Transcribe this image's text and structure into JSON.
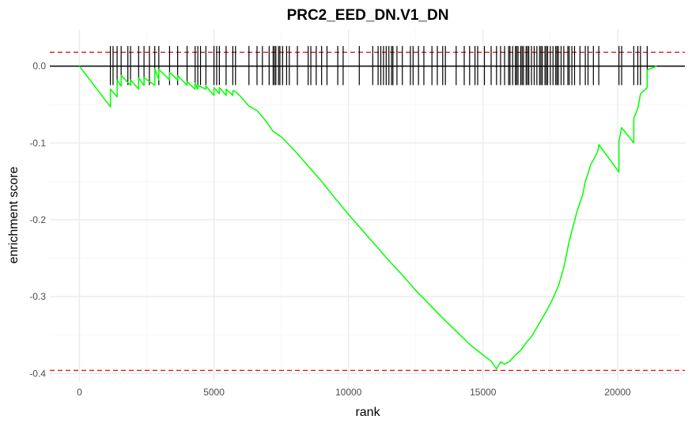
{
  "chart_data": {
    "type": "line",
    "title": "PRC2_EED_DN.V1_DN",
    "xlabel": "rank",
    "ylabel": "enrichment score",
    "xlim": [
      -1100,
      22500
    ],
    "ylim": [
      -0.41,
      0.048
    ],
    "x_ticks": [
      0,
      5000,
      10000,
      15000,
      20000
    ],
    "x_tick_labels": [
      "0",
      "5000",
      "10000",
      "15000",
      "20000"
    ],
    "y_ticks": [
      0.0,
      -0.1,
      -0.2,
      -0.3,
      -0.4
    ],
    "y_tick_labels": [
      "0.0",
      "-0.1",
      "-0.2",
      "-0.3",
      "-0.4"
    ],
    "grid": true,
    "colors": {
      "curve": "#00ff00",
      "threshold": "#e31a1c",
      "zero": "#000000",
      "gene_tick": "#000000",
      "grid_major": "#ebebeb",
      "grid_minor": "#f5f5f5"
    },
    "thresholds": [
      0.018,
      -0.396
    ],
    "series": [
      {
        "name": "running enrichment score",
        "x": [
          0,
          1150,
          1150,
          1400,
          1400,
          1550,
          1550,
          1900,
          1900,
          2200,
          2200,
          2400,
          2400,
          2800,
          2800,
          2950,
          2950,
          3350,
          3350,
          3650,
          3650,
          4000,
          4000,
          4300,
          4300,
          4400,
          4400,
          4700,
          4700,
          5000,
          5000,
          5200,
          5200,
          5450,
          5450,
          5700,
          5700,
          5800,
          6000,
          6300,
          6600,
          6900,
          7200,
          7500,
          8000,
          8500,
          9000,
          9500,
          10000,
          10500,
          11000,
          11500,
          12000,
          12500,
          13000,
          13500,
          14000,
          14500,
          15000,
          15300,
          15500,
          15650,
          15800,
          16000,
          16200,
          16400,
          16600,
          16800,
          17000,
          17200,
          17400,
          17600,
          17800,
          18000,
          18100,
          18200,
          18350,
          18500,
          18700,
          18800,
          18900,
          19000,
          19100,
          19250,
          19300,
          19300,
          20050,
          20050,
          20150,
          20150,
          20600,
          20600,
          20750,
          20750,
          20850,
          20850,
          21100,
          21100,
          21450
        ],
        "y": [
          0.0,
          -0.053,
          -0.03,
          -0.04,
          -0.018,
          -0.026,
          -0.012,
          -0.025,
          -0.018,
          -0.03,
          -0.015,
          -0.025,
          -0.015,
          -0.025,
          -0.003,
          -0.018,
          -0.004,
          -0.018,
          -0.008,
          -0.018,
          -0.012,
          -0.025,
          -0.02,
          -0.03,
          -0.022,
          -0.03,
          -0.025,
          -0.03,
          -0.026,
          -0.038,
          -0.028,
          -0.036,
          -0.028,
          -0.038,
          -0.03,
          -0.038,
          -0.032,
          -0.033,
          -0.04,
          -0.052,
          -0.058,
          -0.07,
          -0.085,
          -0.092,
          -0.11,
          -0.13,
          -0.15,
          -0.172,
          -0.193,
          -0.213,
          -0.233,
          -0.253,
          -0.272,
          -0.292,
          -0.31,
          -0.328,
          -0.345,
          -0.362,
          -0.376,
          -0.384,
          -0.394,
          -0.385,
          -0.388,
          -0.384,
          -0.376,
          -0.37,
          -0.36,
          -0.352,
          -0.34,
          -0.328,
          -0.316,
          -0.302,
          -0.286,
          -0.262,
          -0.245,
          -0.228,
          -0.208,
          -0.188,
          -0.168,
          -0.15,
          -0.14,
          -0.128,
          -0.122,
          -0.112,
          -0.105,
          -0.102,
          -0.138,
          -0.098,
          -0.08,
          -0.08,
          -0.1,
          -0.068,
          -0.055,
          -0.055,
          -0.036,
          -0.036,
          -0.028,
          -0.005,
          0.0
        ]
      }
    ],
    "gene_hits": [
      1150,
      1250,
      1400,
      1550,
      1800,
      1900,
      2200,
      2400,
      2600,
      2800,
      2950,
      3350,
      3650,
      4000,
      4300,
      4400,
      4500,
      4700,
      5000,
      5100,
      5200,
      5450,
      5700,
      5800,
      6300,
      6600,
      6800,
      7050,
      7200,
      7250,
      7300,
      7400,
      7450,
      7550,
      7700,
      7800,
      8100,
      8500,
      8600,
      8800,
      9000,
      9200,
      9600,
      9800,
      10400,
      10900,
      11100,
      11200,
      11300,
      11400,
      11500,
      11600,
      11650,
      11800,
      12000,
      12300,
      12400,
      12600,
      12800,
      13100,
      13300,
      13500,
      13600,
      14000,
      14300,
      14500,
      14700,
      14800,
      15050,
      15300,
      15500,
      15650,
      15800,
      15950,
      16000,
      16100,
      16200,
      16250,
      16300,
      16400,
      16450,
      16500,
      16600,
      16650,
      16700,
      16800,
      16900,
      17000,
      17100,
      17150,
      17200,
      17300,
      17350,
      17400,
      17500,
      17600,
      17700,
      17750,
      17800,
      17900,
      18000,
      18150,
      18200,
      18300,
      18400,
      18600,
      18800,
      18900,
      19100,
      19300,
      20050,
      20150,
      20600,
      20750,
      20850,
      21100
    ]
  }
}
